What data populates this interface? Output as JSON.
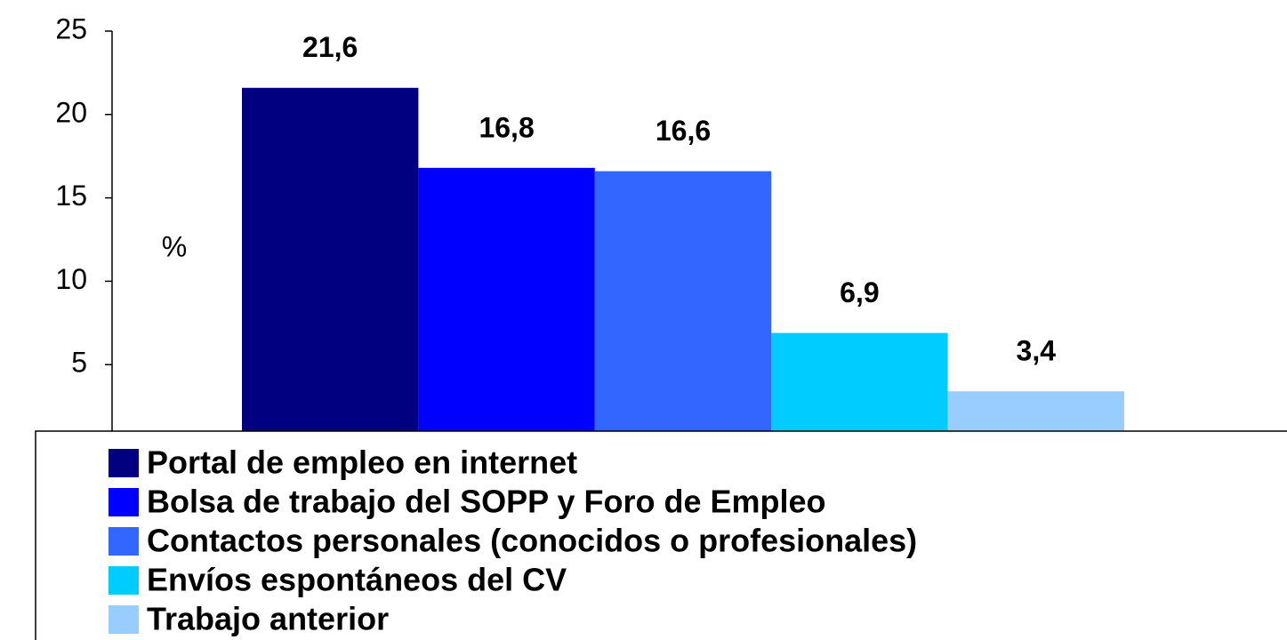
{
  "chart_data": {
    "type": "bar",
    "ylabel": "%",
    "ylim": [
      0,
      25
    ],
    "yticks": [
      5,
      10,
      15,
      20,
      25
    ],
    "legend": "bottom",
    "series": [
      {
        "name": "Portal de empleo en internet",
        "color": "#000080",
        "values": [
          21.6
        ],
        "value_labels": [
          "21,6"
        ]
      },
      {
        "name": "Bolsa de trabajo del SOPP y Foro de Empleo",
        "color": "#0000ff",
        "values": [
          16.8
        ],
        "value_labels": [
          "16,8"
        ]
      },
      {
        "name": "Contactos personales (conocidos o profesionales)",
        "color": "#3366ff",
        "values": [
          16.6
        ],
        "value_labels": [
          "16,6"
        ]
      },
      {
        "name": "Envíos espontáneos del CV",
        "color": "#00ccff",
        "values": [
          6.9
        ],
        "value_labels": [
          "6,9"
        ]
      },
      {
        "name": "Trabajo anterior",
        "color": "#99ccff",
        "values": [
          3.4
        ],
        "value_labels": [
          "3,4"
        ]
      }
    ]
  }
}
